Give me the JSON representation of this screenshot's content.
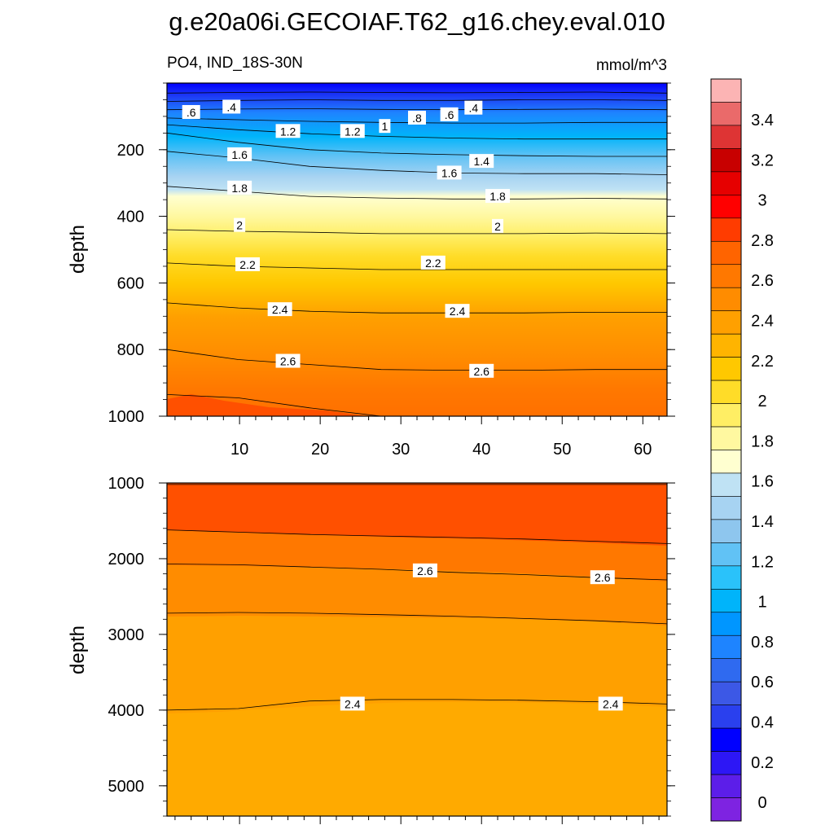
{
  "title": "g.e20a06i.GECOIAF.T62_g16.chey.eval.010",
  "chart_data": [
    {
      "type": "contour",
      "variable_label": "PO4, IND_18S-30N",
      "units_label": "mmol/m^3",
      "ylabel": "depth",
      "xlim": [
        1,
        63
      ],
      "ylim": [
        0,
        1000
      ],
      "y_inverted": true,
      "x_ticks": [
        "10",
        "20",
        "30",
        "40",
        "50",
        "60"
      ],
      "y_ticks": [
        "200",
        "400",
        "600",
        "800",
        "1000"
      ],
      "contour_lines": [
        {
          "level": 0.4,
          "depth": [
            30,
            28,
            27,
            28,
            29,
            28,
            27,
            30
          ]
        },
        {
          "level": 0.6,
          "depth": [
            55,
            52,
            50,
            52,
            52,
            50,
            50,
            52
          ]
        },
        {
          "level": 0.8,
          "depth": [
            80,
            78,
            77,
            79,
            80,
            79,
            78,
            80
          ]
        },
        {
          "level": 1.0,
          "depth": [
            105,
            110,
            115,
            118,
            120,
            120,
            118,
            118
          ]
        },
        {
          "level": 1.2,
          "depth": [
            125,
            140,
            152,
            160,
            165,
            168,
            168,
            168
          ]
        },
        {
          "level": 1.4,
          "depth": [
            150,
            178,
            200,
            210,
            215,
            218,
            220,
            220
          ]
        },
        {
          "level": 1.6,
          "depth": [
            205,
            225,
            250,
            262,
            270,
            272,
            272,
            275
          ]
        },
        {
          "level": 1.8,
          "depth": [
            310,
            325,
            340,
            345,
            348,
            348,
            346,
            348
          ]
        },
        {
          "level": 2.0,
          "depth": [
            440,
            445,
            448,
            452,
            452,
            452,
            450,
            452
          ]
        },
        {
          "level": 2.2,
          "depth": [
            540,
            550,
            555,
            560,
            560,
            560,
            560,
            560
          ]
        },
        {
          "level": 2.4,
          "depth": [
            660,
            675,
            685,
            690,
            690,
            690,
            688,
            688
          ]
        },
        {
          "level": 2.6,
          "depth": [
            800,
            830,
            845,
            860,
            862,
            862,
            860,
            860
          ]
        },
        {
          "level": 2.8,
          "depth": [
            935,
            945,
            975,
            1000,
            1000,
            1000,
            1000,
            1000
          ]
        }
      ],
      "labels": [
        {
          "text": ".6",
          "x": 4,
          "depth": 88
        },
        {
          "text": ".4",
          "x": 9,
          "depth": 72
        },
        {
          "text": "1.2",
          "x": 16,
          "depth": 145
        },
        {
          "text": "1.2",
          "x": 24,
          "depth": 145
        },
        {
          "text": "1",
          "x": 28,
          "depth": 130
        },
        {
          "text": ".8",
          "x": 32,
          "depth": 105
        },
        {
          "text": ".6",
          "x": 36,
          "depth": 95
        },
        {
          "text": ".4",
          "x": 39,
          "depth": 75
        },
        {
          "text": "1.4",
          "x": 40,
          "depth": 235
        },
        {
          "text": "1.6",
          "x": 10,
          "depth": 215
        },
        {
          "text": "1.6",
          "x": 36,
          "depth": 270
        },
        {
          "text": "1.8",
          "x": 10,
          "depth": 315
        },
        {
          "text": "1.8",
          "x": 42,
          "depth": 340
        },
        {
          "text": "2",
          "x": 10,
          "depth": 427
        },
        {
          "text": "2",
          "x": 42,
          "depth": 430
        },
        {
          "text": "2.2",
          "x": 11,
          "depth": 545
        },
        {
          "text": "2.2",
          "x": 34,
          "depth": 540
        },
        {
          "text": "2.4",
          "x": 15,
          "depth": 680
        },
        {
          "text": "2.4",
          "x": 37,
          "depth": 685
        },
        {
          "text": "2.6",
          "x": 16,
          "depth": 835
        },
        {
          "text": "2.6",
          "x": 40,
          "depth": 865
        }
      ]
    },
    {
      "type": "contour",
      "ylabel": "depth",
      "xlim": [
        1,
        63
      ],
      "ylim": [
        1000,
        5400
      ],
      "y_inverted": true,
      "y_ticks": [
        "1000",
        "2000",
        "3000",
        "4000",
        "5000"
      ],
      "contour_lines": [
        {
          "level": 2.8,
          "depth": [
            1020,
            1020,
            1020,
            1020,
            1020,
            1020,
            1020,
            1020
          ]
        },
        {
          "level": 2.6,
          "depth": [
            1620,
            1650,
            1680,
            1700,
            1720,
            1740,
            1770,
            1800
          ]
        },
        {
          "level": 2.6,
          "depth": [
            2070,
            2080,
            2110,
            2140,
            2180,
            2210,
            2250,
            2280
          ]
        },
        {
          "level": 2.4,
          "depth": [
            2720,
            2710,
            2720,
            2740,
            2760,
            2790,
            2820,
            2860
          ]
        },
        {
          "level": 2.4,
          "depth": [
            4000,
            3980,
            3880,
            3860,
            3860,
            3870,
            3890,
            3920
          ]
        }
      ],
      "labels": [
        {
          "text": "2.6",
          "x": 33,
          "depth": 2160
        },
        {
          "text": "2.6",
          "x": 55,
          "depth": 2250
        },
        {
          "text": "2.4",
          "x": 24,
          "depth": 3920
        },
        {
          "text": "2.4",
          "x": 56,
          "depth": 3920
        }
      ]
    }
  ],
  "colorbar": {
    "tick_labels": [
      "3.4",
      "3.2",
      "3",
      "2.8",
      "2.6",
      "2.4",
      "2.2",
      "2",
      "1.8",
      "1.6",
      "1.4",
      "1.2",
      "1",
      "0.8",
      "0.6",
      "0.4",
      "0.2",
      "0"
    ],
    "colors": [
      "#fcb4b4",
      "#ea6a6a",
      "#de3434",
      "#c80000",
      "#e60000",
      "#ff0000",
      "#ff3c00",
      "#ff6400",
      "#ff7800",
      "#ff8c00",
      "#ffa000",
      "#ffb400",
      "#ffc800",
      "#ffdc28",
      "#ffee64",
      "#fff8a0",
      "#ffffd0",
      "#bfe2f4",
      "#a7d3f2",
      "#8ec6ee",
      "#61c2f5",
      "#2ac2fa",
      "#00b4fa",
      "#0096ff",
      "#1e84ff",
      "#2f6af0",
      "#3c58e6",
      "#2a40ee",
      "#0000ff",
      "#2d17f5",
      "#5c1ee9",
      "#7e23e1"
    ]
  }
}
